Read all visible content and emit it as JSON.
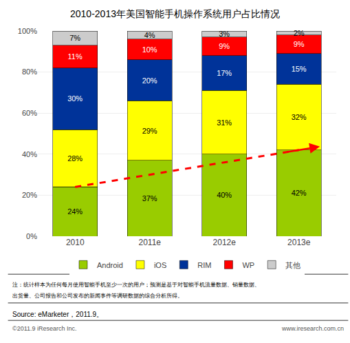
{
  "chart_data": {
    "type": "bar",
    "title": "2010-2013年美国智能手机操作系统用户占比情况",
    "categories": [
      "2010",
      "2011e",
      "2012e",
      "2013e"
    ],
    "series": [
      {
        "name": "Android",
        "color": "#99CC00",
        "values": [
          24,
          37,
          40,
          42
        ],
        "value_labels": [
          "24%",
          "37%",
          "40%",
          "42%"
        ]
      },
      {
        "name": "iOS",
        "color": "#FFFF00",
        "values": [
          28,
          29,
          31,
          32
        ],
        "value_labels": [
          "28%",
          "29%",
          "31%",
          "32%"
        ]
      },
      {
        "name": "RIM",
        "color": "#003399",
        "values": [
          30,
          20,
          17,
          15
        ],
        "value_labels": [
          "30%",
          "20%",
          "17%",
          "15%"
        ]
      },
      {
        "name": "WP",
        "color": "#FF0000",
        "values": [
          11,
          10,
          9,
          9
        ],
        "value_labels": [
          "11%",
          "10%",
          "9%",
          "9%"
        ]
      },
      {
        "name": "其他",
        "color": "#CCCCCC",
        "values": [
          7,
          4,
          3,
          2
        ],
        "value_labels": [
          "7%",
          "4%",
          "3%",
          "2%"
        ]
      }
    ],
    "ylim": [
      0,
      100
    ],
    "yticks": [
      {
        "value": 0,
        "label": "0%"
      },
      {
        "value": 20,
        "label": "20%"
      },
      {
        "value": 40,
        "label": "40%"
      },
      {
        "value": 60,
        "label": "60%"
      },
      {
        "value": 80,
        "label": "80%"
      },
      {
        "value": 100,
        "label": "100%"
      }
    ],
    "grid": true,
    "stacked": true,
    "data_labels": true,
    "legend": "bottom",
    "annotations": [
      "注：统计样本为任何每月使用智能手机至少一次的用户；预测是基于对智能手机流量数据、销量数据、",
      "出货量、公司报告和公司发布的新闻事件等调研数据的综合分析所得。",
      "Source: eMarketer，2011.9。",
      "©2011.9 iResearch Inc.",
      "www.iresearch.com.cn"
    ]
  }
}
